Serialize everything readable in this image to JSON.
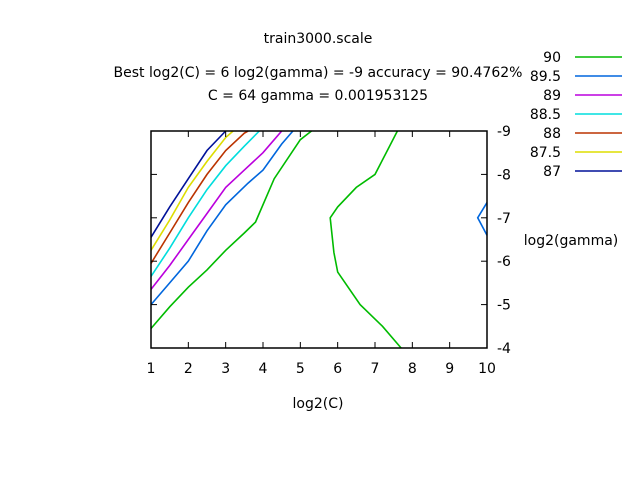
{
  "chart_data": {
    "type": "line",
    "title": "train3000.scale",
    "subtitle_lines": [
      "Best log2(C) = 6  log2(gamma) = -9  accuracy = 90.4762%",
      "C = 64  gamma = 0.001953125"
    ],
    "xlabel": "log2(C)",
    "ylabel": "log2(gamma)",
    "xlim": [
      1,
      10
    ],
    "ylim": [
      -4,
      -9
    ],
    "x_ticks": [
      "1",
      "2",
      "3",
      "4",
      "5",
      "6",
      "7",
      "8",
      "9",
      "10"
    ],
    "y_ticks": [
      "-9",
      "-8",
      "-7",
      "-6",
      "-5",
      "-4"
    ],
    "y_tick_values": [
      -9,
      -8,
      -7,
      -6,
      -5,
      -4
    ],
    "legend_position": "top-right",
    "series": [
      {
        "name": "90",
        "color": "#00bb00",
        "segments": [
          [
            [
              1,
              -4.45
            ],
            [
              1.5,
              -4.95
            ],
            [
              2,
              -5.4
            ],
            [
              2.5,
              -5.8
            ],
            [
              3,
              -6.25
            ],
            [
              3.5,
              -6.65
            ],
            [
              3.8,
              -6.9
            ],
            [
              4.3,
              -7.9
            ],
            [
              5,
              -8.8
            ],
            [
              5.3,
              -9
            ]
          ],
          [
            [
              7.6,
              -9
            ],
            [
              7.3,
              -8.5
            ],
            [
              7,
              -8
            ],
            [
              6.5,
              -7.7
            ],
            [
              6,
              -7.25
            ],
            [
              5.8,
              -7
            ],
            [
              5.9,
              -6.2
            ],
            [
              6,
              -5.75
            ],
            [
              6.6,
              -5
            ],
            [
              7.2,
              -4.5
            ],
            [
              7.7,
              -4
            ]
          ]
        ]
      },
      {
        "name": "89.5",
        "color": "#0066dd",
        "segments": [
          [
            [
              1,
              -5
            ],
            [
              1.5,
              -5.5
            ],
            [
              2,
              -6
            ],
            [
              2.5,
              -6.7
            ],
            [
              3,
              -7.3
            ],
            [
              3.6,
              -7.8
            ],
            [
              4,
              -8.1
            ],
            [
              4.5,
              -8.7
            ],
            [
              4.8,
              -9
            ]
          ],
          [
            [
              10,
              -7.35
            ],
            [
              9.75,
              -7
            ],
            [
              10,
              -6.6
            ]
          ]
        ]
      },
      {
        "name": "89",
        "color": "#bb00dd",
        "segments": [
          [
            [
              1,
              -5.35
            ],
            [
              1.5,
              -5.9
            ],
            [
              2,
              -6.5
            ],
            [
              2.5,
              -7.1
            ],
            [
              3,
              -7.7
            ],
            [
              3.5,
              -8.1
            ],
            [
              4,
              -8.5
            ],
            [
              4.3,
              -8.8
            ],
            [
              4.5,
              -9
            ]
          ]
        ]
      },
      {
        "name": "88.5",
        "color": "#00dddd",
        "segments": [
          [
            [
              1,
              -5.65
            ],
            [
              1.5,
              -6.3
            ],
            [
              2,
              -7
            ],
            [
              2.5,
              -7.65
            ],
            [
              3,
              -8.2
            ],
            [
              3.5,
              -8.65
            ],
            [
              3.9,
              -9
            ]
          ]
        ]
      },
      {
        "name": "88",
        "color": "#bb3300",
        "segments": [
          [
            [
              1,
              -5.95
            ],
            [
              1.5,
              -6.65
            ],
            [
              2,
              -7.35
            ],
            [
              2.5,
              -8
            ],
            [
              3,
              -8.55
            ],
            [
              3.5,
              -8.95
            ],
            [
              3.6,
              -9
            ]
          ]
        ]
      },
      {
        "name": "87.5",
        "color": "#dddd00",
        "segments": [
          [
            [
              1,
              -6.25
            ],
            [
              1.5,
              -6.95
            ],
            [
              2,
              -7.7
            ],
            [
              2.5,
              -8.3
            ],
            [
              3,
              -8.85
            ],
            [
              3.2,
              -9
            ]
          ]
        ]
      },
      {
        "name": "87",
        "color": "#001199",
        "segments": [
          [
            [
              1,
              -6.55
            ],
            [
              1.5,
              -7.25
            ],
            [
              2,
              -7.9
            ],
            [
              2.5,
              -8.55
            ],
            [
              3,
              -9
            ]
          ]
        ]
      }
    ]
  }
}
